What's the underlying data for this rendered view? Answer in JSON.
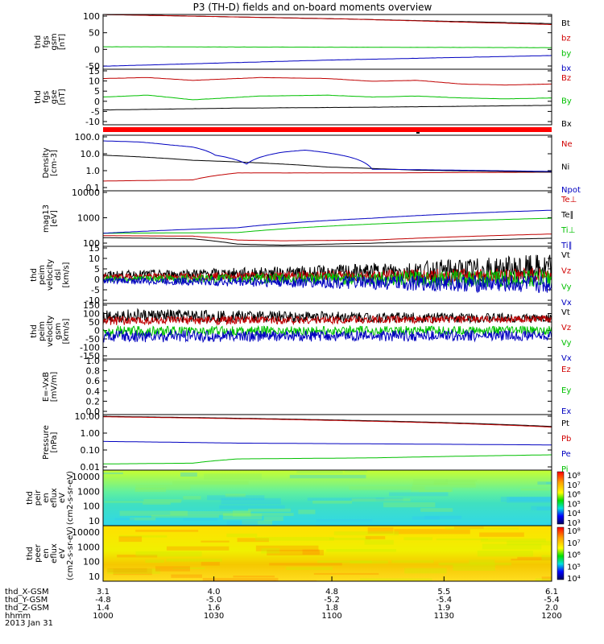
{
  "chart_data": {
    "type": "line",
    "title": "P3 (TH-D) fields and on-board moments overview",
    "date": "2013 Jan 31",
    "panels": [
      {
        "id": "fgs",
        "ylabel": [
          "thd",
          "fgs",
          "gsm",
          "[nT]"
        ],
        "yticks": [
          "100",
          "50",
          "0",
          "-50"
        ],
        "yrange": [
          -70,
          110
        ],
        "series": [
          {
            "name": "Bt",
            "color": "#000000",
            "x": [
              0,
              0.55,
              1
            ],
            "y": [
              110,
              95,
              80
            ]
          },
          {
            "name": "bz",
            "color": "#c00000",
            "x": [
              0,
              0.55,
              1
            ],
            "y": [
              110,
              95,
              77
            ]
          },
          {
            "name": "by",
            "color": "#00c000",
            "x": [
              0,
              1
            ],
            "y": [
              4,
              1
            ]
          },
          {
            "name": "bx",
            "color": "#0000c0",
            "x": [
              0,
              0.5,
              1
            ],
            "y": [
              -60,
              -40,
              -25
            ]
          }
        ]
      },
      {
        "id": "fgs-dsl",
        "ylabel": [
          "thd",
          "fgs",
          "gse",
          "[nT]"
        ],
        "yticks": [
          "15",
          "10",
          "5",
          "0",
          "-5",
          "-10"
        ],
        "yrange": [
          -13,
          17
        ],
        "series": [
          {
            "name": "Bz",
            "color": "#c00000",
            "x": [
              0,
              0.1,
              0.2,
              0.35,
              0.5,
              0.6,
              0.7,
              0.8,
              0.9,
              1
            ],
            "y": [
              12,
              12.5,
              11,
              12.5,
              12,
              10.5,
              11,
              9,
              8.5,
              9
            ]
          },
          {
            "name": "By",
            "color": "#00c000",
            "x": [
              0,
              0.1,
              0.2,
              0.35,
              0.5,
              0.6,
              0.7,
              0.8,
              0.9,
              1
            ],
            "y": [
              2,
              3,
              0.5,
              2.5,
              3,
              2,
              2.5,
              1.5,
              1,
              1.5
            ]
          },
          {
            "name": "Bx",
            "color": "#000000",
            "x": [
              0,
              0.3,
              0.6,
              1
            ],
            "y": [
              -5,
              -4,
              -3.5,
              -2.5
            ]
          }
        ]
      },
      {
        "id": "density",
        "ylabel": [
          "Density",
          "[cm-3]"
        ],
        "yticks": [
          "100.0",
          "10.0",
          "1.0",
          "0.1"
        ],
        "log": true,
        "yrange": [
          0.08,
          150
        ],
        "series": [
          {
            "name": "Ne",
            "color": "#c00000",
            "x": [
              0,
              0.2,
              0.3,
              0.6,
              1
            ],
            "y": [
              0.3,
              0.35,
              0.9,
              0.9,
              1.0
            ]
          },
          {
            "name": "Ni",
            "color": "#000000",
            "x": [
              0,
              0.2,
              0.5,
              0.7,
              1
            ],
            "y": [
              10,
              5,
              2,
              1.3,
              1.0
            ]
          },
          {
            "name": "Npot",
            "color": "#0000c0",
            "x": [
              0,
              0.08,
              0.15,
              0.2,
              0.25,
              0.32,
              0.4,
              0.45,
              0.6,
              1
            ],
            "y": [
              70,
              60,
              40,
              30,
              10,
              3,
              15,
              20,
              1.5,
              1.1
            ]
          }
        ]
      },
      {
        "id": "temperature",
        "ylabel": [
          "mag13",
          "[eV]"
        ],
        "yticks": [
          "10000",
          "1000",
          "100"
        ],
        "log": true,
        "yrange": [
          90,
          15000
        ],
        "series": [
          {
            "name": "Te⊥",
            "color": "#c00000",
            "x": [
              0,
              0.2,
              0.3,
              0.4,
              0.6,
              1
            ],
            "y": [
              240,
              230,
              160,
              150,
              160,
              280
            ]
          },
          {
            "name": "Te∥",
            "color": "#000000",
            "x": [
              0,
              0.2,
              0.3,
              0.4,
              0.6,
              1
            ],
            "y": [
              200,
              180,
              110,
              100,
              120,
              190
            ]
          },
          {
            "name": "Ti⊥",
            "color": "#00c000",
            "x": [
              0,
              0.3,
              0.6,
              1
            ],
            "y": [
              300,
              320,
              700,
              1200
            ]
          },
          {
            "name": "Ti∥",
            "color": "#0000c0",
            "x": [
              0,
              0.3,
              0.6,
              1
            ],
            "y": [
              300,
              500,
              1200,
              2500
            ]
          }
        ]
      },
      {
        "id": "peim-velocity",
        "ylabel": [
          "thd",
          "peim",
          "velocity",
          "dsl",
          "[km/s]"
        ],
        "yticks": [
          "15",
          "10",
          "5",
          "0",
          "-5",
          "-10"
        ],
        "yrange": [
          -13,
          17
        ],
        "series": [
          {
            "name": "Vt",
            "color": "#000000",
            "x": [
              0,
              0.5,
              1
            ],
            "y": [
              2,
              3,
              5
            ],
            "noise": [
              2,
              4,
              8
            ]
          },
          {
            "name": "Vz",
            "color": "#c00000",
            "x": [
              0,
              1
            ],
            "y": [
              1,
              2
            ],
            "noise": [
              1.5,
              4
            ]
          },
          {
            "name": "Vy",
            "color": "#00c000",
            "x": [
              0,
              1
            ],
            "y": [
              0,
              0
            ],
            "noise": [
              1.5,
              5
            ]
          },
          {
            "name": "Vx",
            "color": "#0000c0",
            "x": [
              0,
              1
            ],
            "y": [
              -1,
              -3
            ],
            "noise": [
              1.5,
              5
            ]
          }
        ]
      },
      {
        "id": "peim-velocity-gsm",
        "ylabel": [
          "thd",
          "peim",
          "velocity",
          "gsm",
          "[km/s]"
        ],
        "yticks": [
          "150",
          "100",
          "50",
          "0",
          "-50",
          "-100",
          "-150"
        ],
        "yrange": [
          -160,
          160
        ],
        "series": [
          {
            "name": "Vt",
            "color": "#000000",
            "x": [
              0,
              1
            ],
            "y": [
              90,
              75
            ],
            "noise": [
              40,
              25
            ]
          },
          {
            "name": "Vz",
            "color": "#c00000",
            "x": [
              0,
              1
            ],
            "y": [
              60,
              70
            ],
            "noise": [
              25,
              20
            ]
          },
          {
            "name": "Vy",
            "color": "#00c000",
            "x": [
              0,
              1
            ],
            "y": [
              0,
              5
            ],
            "noise": [
              30,
              25
            ]
          },
          {
            "name": "Vx",
            "color": "#0000c0",
            "x": [
              0,
              1
            ],
            "y": [
              -30,
              -25
            ],
            "noise": [
              35,
              30
            ]
          }
        ]
      },
      {
        "id": "efield",
        "ylabel": [
          "E=-VxB",
          "[mV/m]"
        ],
        "yticks": [
          "1.0",
          "0.8",
          "0.6",
          "0.4",
          "0.2",
          "0.0"
        ],
        "yrange": [
          0,
          1
        ],
        "series": []
      },
      {
        "id": "pressure",
        "ylabel": [
          "Pressure",
          "[nPa]"
        ],
        "yticks": [
          "10.00",
          "1.00",
          "0.10",
          "0.01"
        ],
        "log": true,
        "yrange": [
          0.008,
          12
        ],
        "series": [
          {
            "name": "Pt",
            "color": "#000000",
            "x": [
              0,
              1
            ],
            "y": [
              9.5,
              2.5
            ]
          },
          {
            "name": "Pb",
            "color": "#c00000",
            "x": [
              0,
              1
            ],
            "y": [
              9.0,
              2.3
            ]
          },
          {
            "name": "Pe",
            "color": "#0000c0",
            "x": [
              0,
              0.3,
              1
            ],
            "y": [
              0.35,
              0.28,
              0.22
            ]
          },
          {
            "name": "Pi",
            "color": "#00c000",
            "x": [
              0,
              0.2,
              0.3,
              0.6,
              1
            ],
            "y": [
              0.018,
              0.02,
              0.035,
              0.04,
              0.06
            ]
          }
        ]
      },
      {
        "id": "peir-spectrogram",
        "ylabel": [
          "thd",
          "peir",
          "en",
          "eflux",
          "eV",
          "(cm2-s-sr-eV)"
        ],
        "yticks": [
          "10000",
          "1000",
          "100",
          "10"
        ],
        "colorbar": [
          "10⁸",
          "10⁷",
          "10⁶",
          "10⁵",
          "10⁴",
          "10³"
        ]
      },
      {
        "id": "peer-spectrogram",
        "ylabel": [
          "thd",
          "peer",
          "en",
          "eflux",
          "eV",
          "(cm2-s-sr-eV)"
        ],
        "yticks": [
          "10000",
          "1000",
          "100",
          "10"
        ],
        "colorbar": [
          "10⁸",
          "10⁷",
          "10⁶",
          "10⁵",
          "10⁴"
        ]
      }
    ],
    "xaxis": {
      "rows": [
        {
          "label": "thd_X-GSM",
          "values": [
            "3.1",
            "4.0",
            "4.8",
            "5.5",
            "6.1"
          ]
        },
        {
          "label": "thd_Y-GSM",
          "values": [
            "-4.8",
            "-5.0",
            "-5.2",
            "-5.4",
            "-5.4"
          ]
        },
        {
          "label": "thd_Z-GSM",
          "values": [
            "1.4",
            "1.6",
            "1.8",
            "1.9",
            "2.0"
          ]
        },
        {
          "label": "hhmm",
          "values": [
            "1000",
            "1030",
            "1100",
            "1130",
            "1200"
          ]
        }
      ]
    }
  },
  "labels": {
    "title": "P3 (TH-D) fields and on-board moments overview",
    "date": "2013 Jan 31"
  }
}
